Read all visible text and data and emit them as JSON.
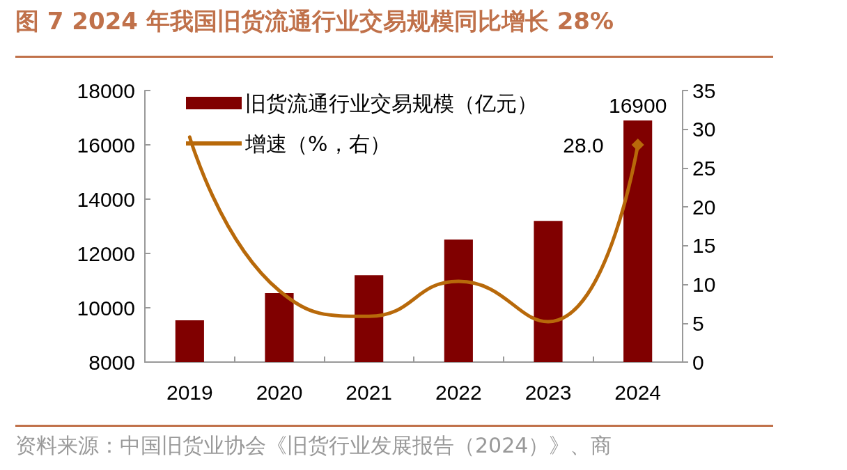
{
  "chart_data": {
    "type": "bar",
    "title": "图 7 2024 年我国旧货流通行业交易规模同比增长 28%",
    "categories": [
      "2019",
      "2020",
      "2021",
      "2022",
      "2023",
      "2024"
    ],
    "series": [
      {
        "name": "旧货流通行业交易规模（亿元）",
        "color": "#800000",
        "values": [
          9540,
          10540,
          11200,
          12510,
          13200,
          16900
        ],
        "value_labels": [
          null,
          null,
          null,
          null,
          null,
          "16900"
        ]
      },
      {
        "name": "增速（%，右）",
        "type": "line",
        "axis": "y2",
        "color": "#b8690a",
        "values": [
          29.0,
          9.2,
          5.9,
          10.4,
          5.2,
          28.0
        ],
        "value_labels": [
          null,
          null,
          null,
          null,
          null,
          "28.0"
        ]
      }
    ],
    "ylim": [
      8000,
      18000
    ],
    "yticks": [
      8000,
      10000,
      12000,
      14000,
      16000,
      18000
    ],
    "y2lim": [
      0,
      35
    ],
    "y2ticks": [
      0,
      5,
      10,
      15,
      20,
      25,
      30,
      35
    ],
    "grid": false,
    "legend": "top left",
    "marker": "none",
    "line_style": "solid",
    "annotations": [
      "资料来源：中国旧货业协会《旧货行业发展报告（2024）》、商"
    ]
  }
}
